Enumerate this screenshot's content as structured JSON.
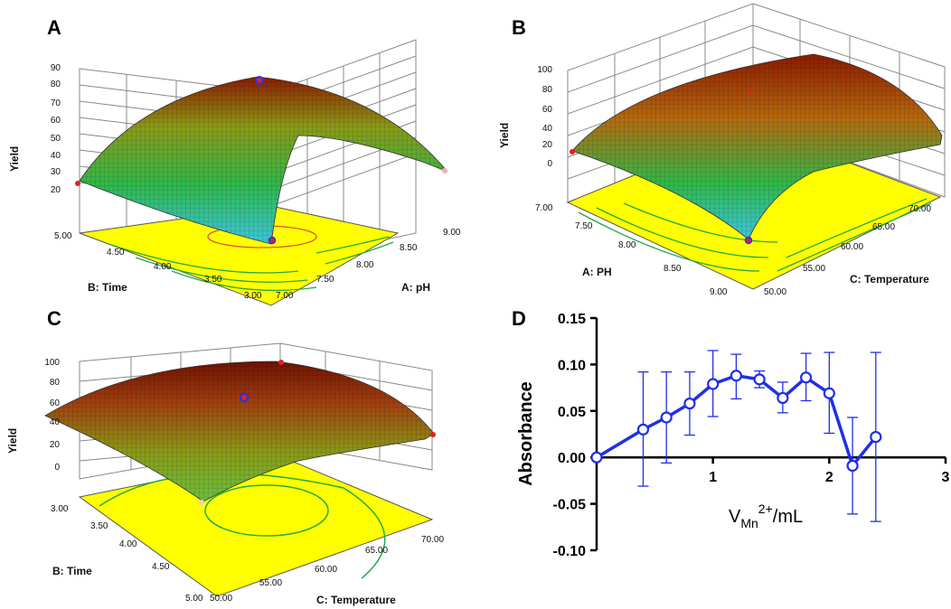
{
  "colors": {
    "floor": "#ffff00",
    "contour": "#22aa44",
    "surface_high": "#8b1a00",
    "surface_mid": "#3cb043",
    "surface_low": "#3ec6e0",
    "line_blue": "#1f2fe8"
  },
  "chart_data": [
    {
      "panel": "A",
      "type": "surface3d",
      "zlabel": "Yield",
      "xlabel": "A: pH",
      "ylabel": "B: Time",
      "zticks": [
        "20",
        "30",
        "40",
        "50",
        "60",
        "70",
        "80",
        "90"
      ],
      "xticks": [
        "7.00",
        "7.50",
        "8.00",
        "8.50",
        "9.00"
      ],
      "yticks": [
        "3.00",
        "3.50",
        "4.00",
        "4.50",
        "5.00"
      ]
    },
    {
      "panel": "B",
      "type": "surface3d",
      "zlabel": "Yield",
      "xlabel": "A: PH",
      "ylabel": "C: Temperature",
      "zticks": [
        "0",
        "20",
        "40",
        "60",
        "80",
        "100"
      ],
      "xticks": [
        "7.00",
        "7.50",
        "8.00",
        "8.50",
        "9.00"
      ],
      "yticks": [
        "50.00",
        "55.00",
        "60.00",
        "65.00",
        "70.00"
      ]
    },
    {
      "panel": "C",
      "type": "surface3d",
      "zlabel": "Yield",
      "xlabel": "B: Time",
      "ylabel": "C: Temperature",
      "zticks": [
        "0",
        "20",
        "40",
        "60",
        "80",
        "100"
      ],
      "xticks": [
        "3.00",
        "3.50",
        "4.00",
        "4.50",
        "5.00"
      ],
      "yticks": [
        "50.00",
        "55.00",
        "60.00",
        "65.00",
        "70.00"
      ]
    },
    {
      "panel": "D",
      "type": "line",
      "ylabel": "Absorbance",
      "xlabel_main": "V",
      "xlabel_sub": "Mn",
      "xlabel_sup": "2+",
      "xlabel_rest": "/mL",
      "xlim": [
        0,
        3
      ],
      "ylim": [
        -0.1,
        0.15
      ],
      "xtick_values": [
        1,
        2,
        3
      ],
      "xticks": [
        "1",
        "2",
        "3"
      ],
      "ytick_values": [
        -0.1,
        -0.05,
        0.0,
        0.05,
        0.1,
        0.15
      ],
      "yticks": [
        "-0.10",
        "-0.05",
        "0.00",
        "0.05",
        "0.10",
        "0.15"
      ],
      "series": [
        {
          "name": "Absorbance",
          "points": [
            {
              "x": 0.0,
              "y": 0.0,
              "lo": 0.0,
              "hi": 0.0
            },
            {
              "x": 0.4,
              "y": 0.03,
              "lo": -0.031,
              "hi": 0.092
            },
            {
              "x": 0.6,
              "y": 0.043,
              "lo": -0.006,
              "hi": 0.092
            },
            {
              "x": 0.8,
              "y": 0.058,
              "lo": 0.024,
              "hi": 0.092
            },
            {
              "x": 1.0,
              "y": 0.079,
              "lo": 0.044,
              "hi": 0.115
            },
            {
              "x": 1.2,
              "y": 0.088,
              "lo": 0.063,
              "hi": 0.111
            },
            {
              "x": 1.4,
              "y": 0.084,
              "lo": 0.075,
              "hi": 0.093
            },
            {
              "x": 1.6,
              "y": 0.064,
              "lo": 0.048,
              "hi": 0.081
            },
            {
              "x": 1.8,
              "y": 0.086,
              "lo": 0.061,
              "hi": 0.112
            },
            {
              "x": 2.0,
              "y": 0.069,
              "lo": 0.026,
              "hi": 0.113
            },
            {
              "x": 2.2,
              "y": -0.009,
              "lo": -0.061,
              "hi": 0.043
            },
            {
              "x": 2.4,
              "y": 0.022,
              "lo": -0.069,
              "hi": 0.113
            }
          ]
        }
      ]
    }
  ]
}
